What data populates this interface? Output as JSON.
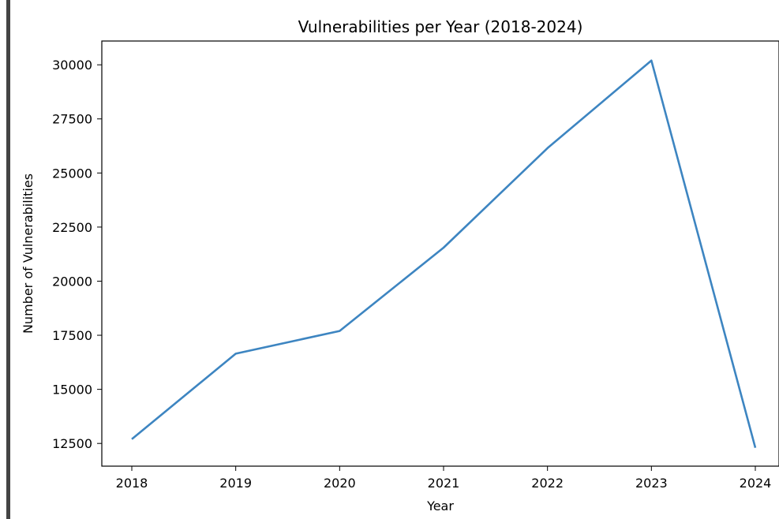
{
  "chart_data": {
    "type": "line",
    "title": "Vulnerabilities per Year (2018-2024)",
    "xlabel": "Year",
    "ylabel": "Number of Vulnerabilities",
    "categories": [
      "2018",
      "2019",
      "2020",
      "2021",
      "2022",
      "2023",
      "2024"
    ],
    "series": [
      {
        "values": [
          12700,
          16650,
          17700,
          21550,
          26150,
          30200,
          12300
        ]
      }
    ],
    "ylim": [
      11450,
      31100
    ],
    "yticks": [
      12500,
      15000,
      17500,
      20000,
      22500,
      25000,
      27500,
      30000
    ],
    "grid": false,
    "line_color": "#3d85c1"
  }
}
